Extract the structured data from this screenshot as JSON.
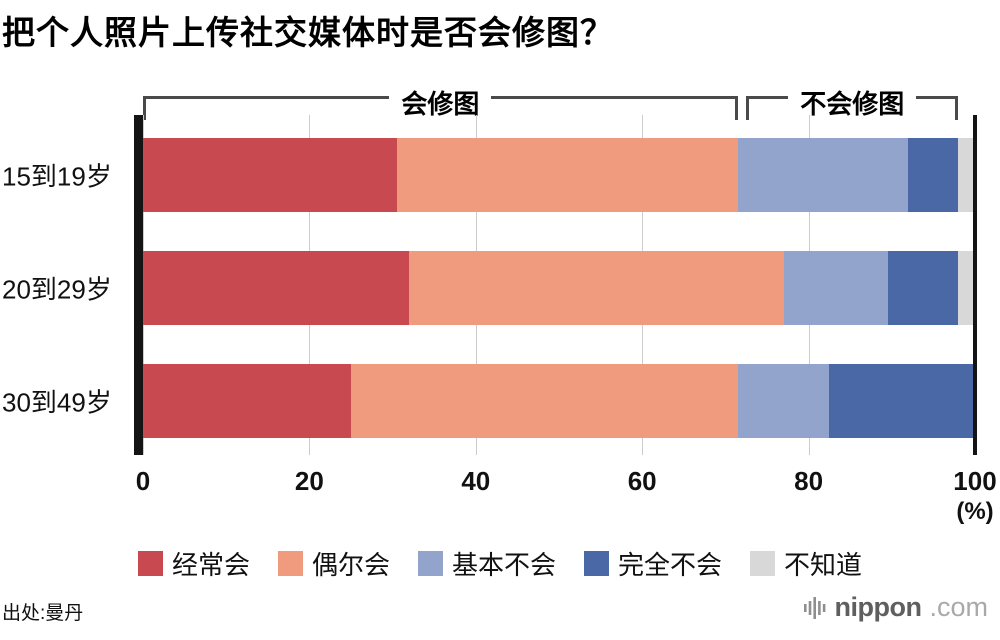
{
  "title": "把个人照片上传社交媒体时是否会修图？",
  "axis": {
    "ticks": [
      0,
      20,
      40,
      60,
      80,
      100
    ],
    "unit": "(%)"
  },
  "chart_data": {
    "type": "bar",
    "stacked": true,
    "orientation": "horizontal",
    "title": "把个人照片上传社交媒体时是否会修图？",
    "categories": [
      "15到19岁",
      "20到29岁",
      "30到49岁"
    ],
    "series": [
      {
        "name": "经常会",
        "color": "#c84a50",
        "values": [
          30.5,
          32.0,
          25.0
        ]
      },
      {
        "name": "偶尔会",
        "color": "#f09b7d",
        "values": [
          41.0,
          45.0,
          46.5
        ]
      },
      {
        "name": "基本不会",
        "color": "#92a4cc",
        "values": [
          20.5,
          12.5,
          11.0
        ]
      },
      {
        "name": "完全不会",
        "color": "#4a67a6",
        "values": [
          6.0,
          8.5,
          17.5
        ]
      },
      {
        "name": "不知道",
        "color": "#d8d8d8",
        "values": [
          2.0,
          2.0,
          0.0
        ]
      }
    ],
    "brackets": [
      {
        "label": "会修图",
        "from": 0,
        "to": 71.5
      },
      {
        "label": "不会修图",
        "from": 72.5,
        "to": 98
      }
    ],
    "xlim": [
      0,
      100
    ],
    "xlabel": "(%)",
    "grid": true,
    "legend_position": "bottom"
  },
  "source": "出处:曼丹",
  "logo": {
    "name": "nippon",
    "tld": ".com"
  }
}
